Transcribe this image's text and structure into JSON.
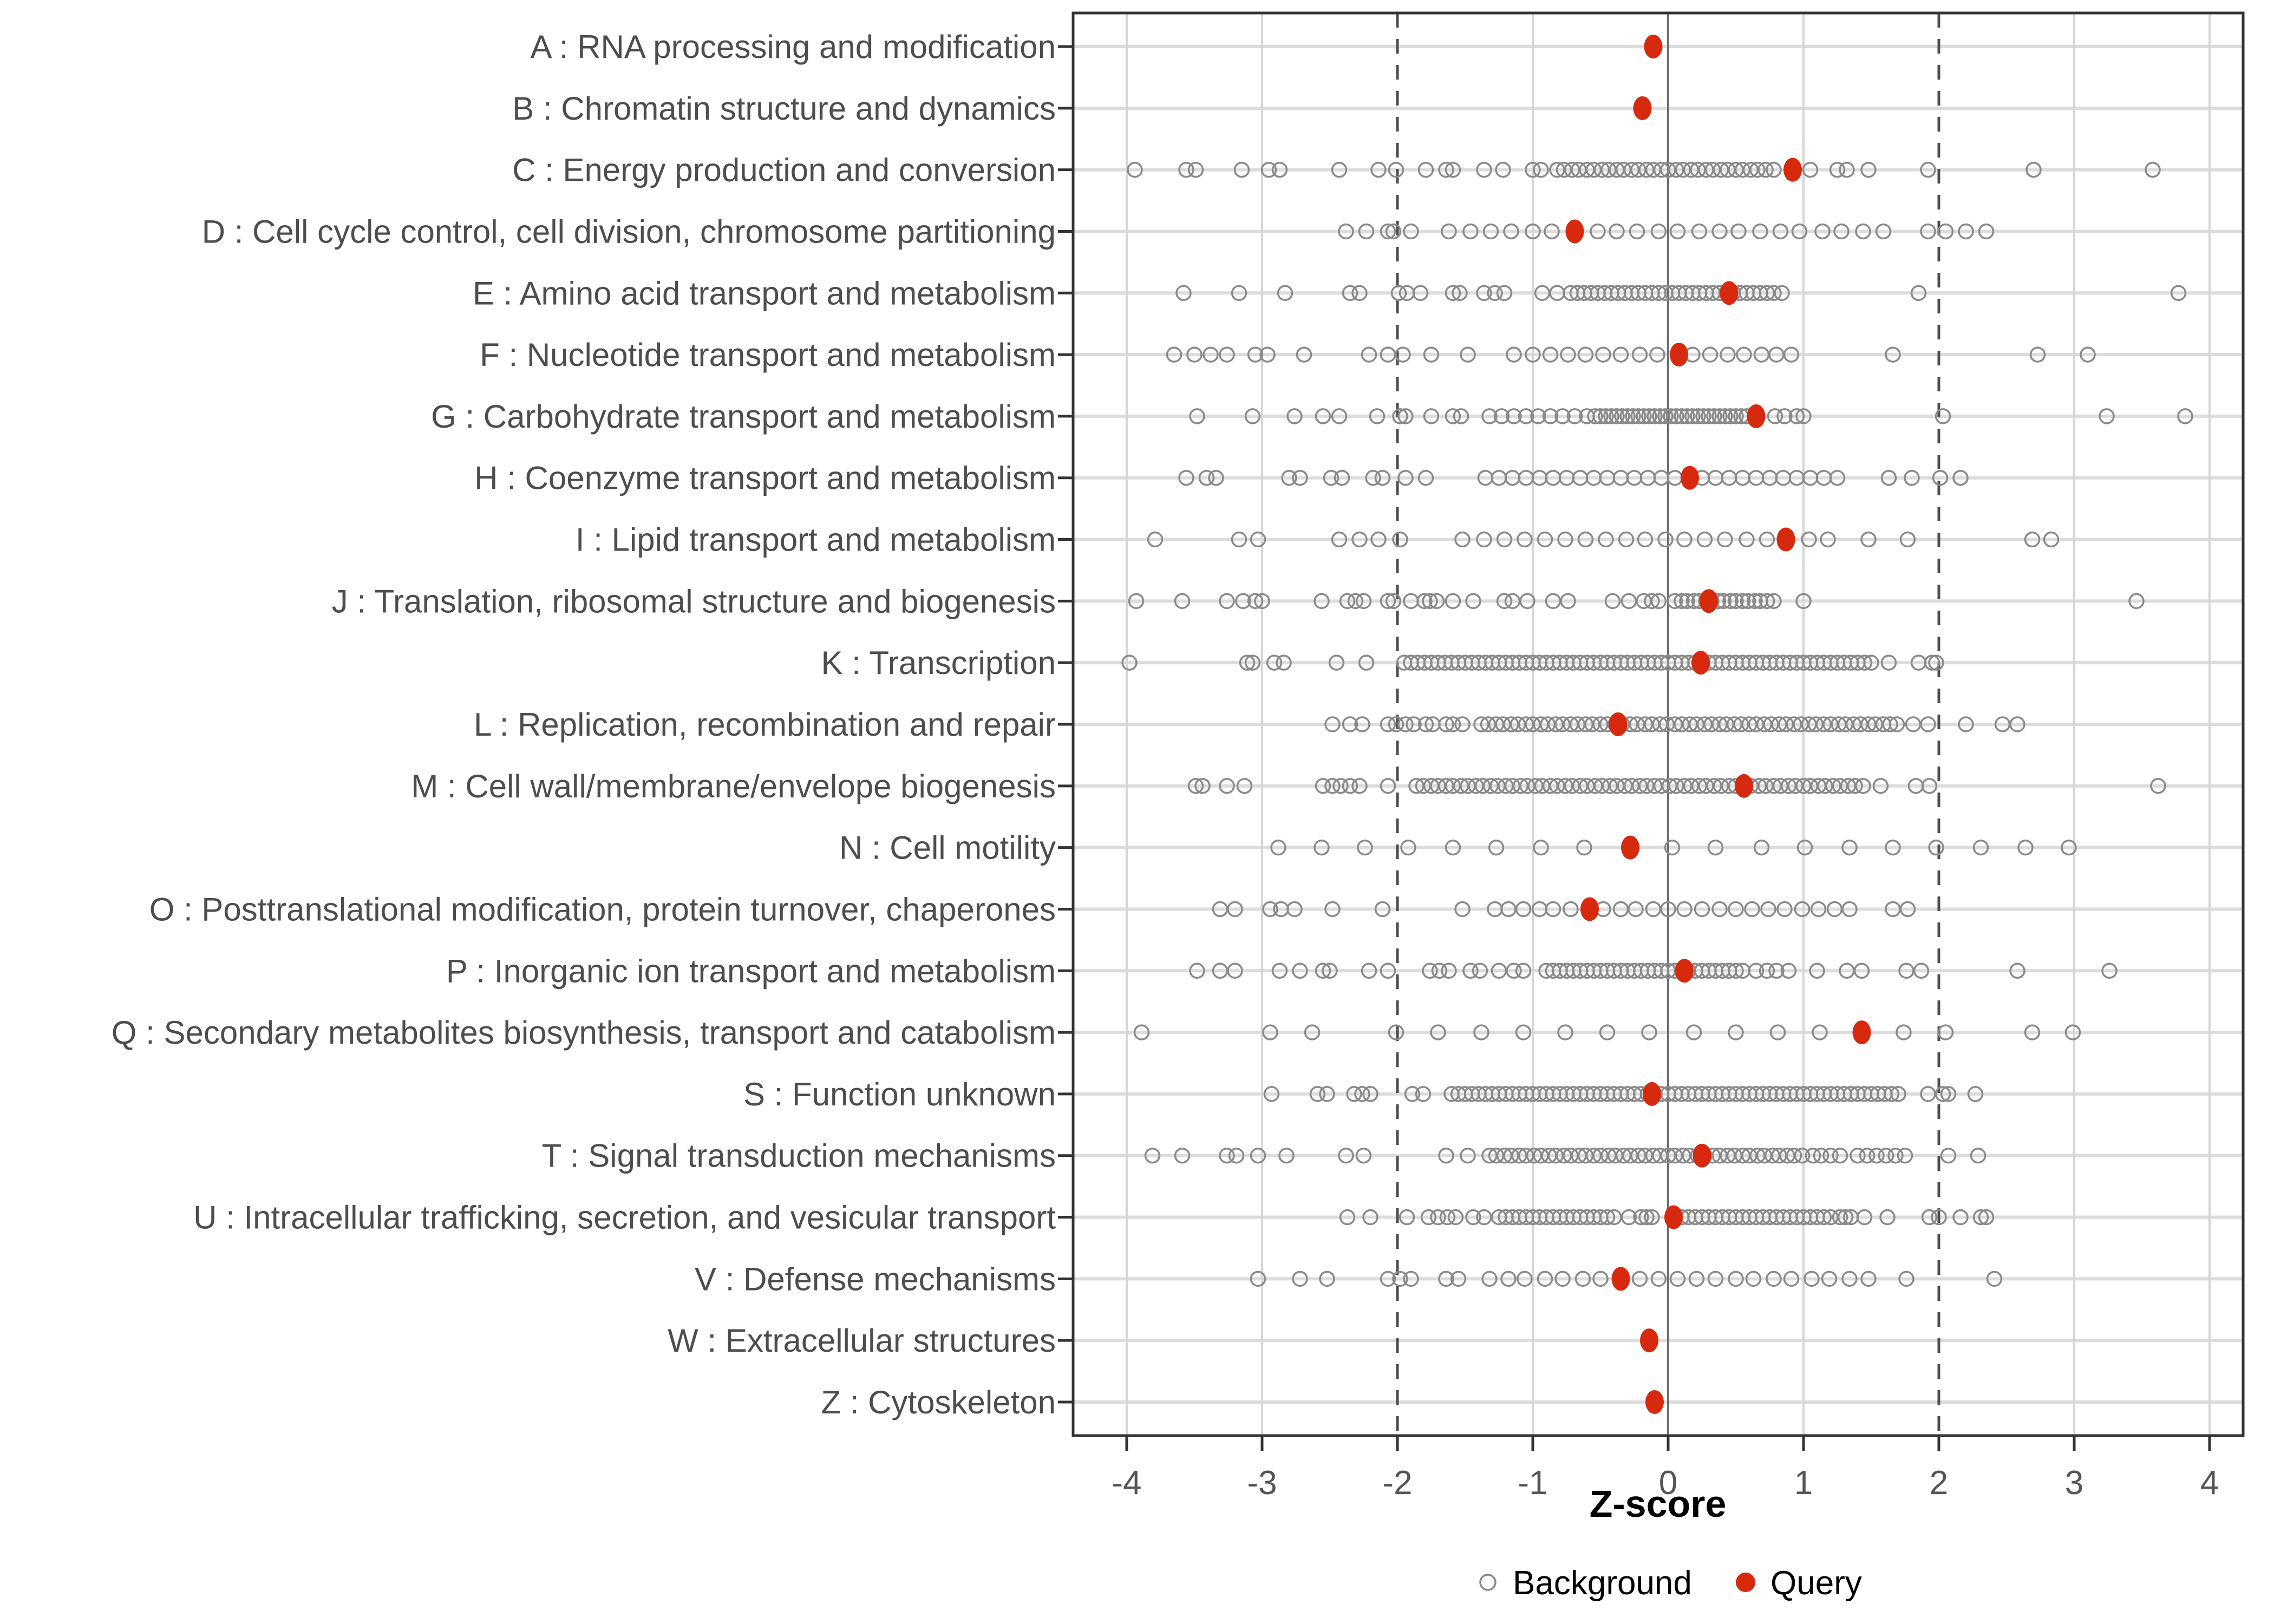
{
  "chart_data": {
    "type": "scatter",
    "title": "",
    "xlabel": "Z-score",
    "ylabel": "",
    "x_ticks": [
      -4,
      -3,
      -2,
      -1,
      0,
      1,
      2,
      3,
      4
    ],
    "xlim": [
      -4.4,
      4.25
    ],
    "grid": true,
    "reference_lines": {
      "solid_x": 0,
      "dashed_x": [
        -2,
        2
      ]
    },
    "legend_position": "bottom",
    "legend": [
      {
        "name": "Background",
        "marker": "open-circle",
        "color": "#8a8a8a"
      },
      {
        "name": "Query",
        "marker": "filled-circle",
        "color": "#d7290d"
      }
    ],
    "categories": [
      {
        "code": "A",
        "label": "A : RNA processing and modification",
        "query": -0.11,
        "background": []
      },
      {
        "code": "B",
        "label": "B : Chromatin structure and dynamics",
        "query": -0.19,
        "background": []
      },
      {
        "code": "C",
        "label": "C : Energy production and conversion",
        "query": 0.92,
        "background": [
          -3.94,
          -3.56,
          -3.49,
          -3.15,
          -2.95,
          -2.87,
          -2.43,
          -2.14,
          -2.01,
          -1.79,
          -1.64,
          -1.59,
          -1.36,
          -1.22,
          -1.0,
          -0.94,
          -0.82,
          -0.77,
          -0.71,
          -0.66,
          -0.6,
          -0.55,
          -0.49,
          -0.44,
          -0.38,
          -0.33,
          -0.27,
          -0.22,
          -0.16,
          -0.11,
          -0.05,
          0.0,
          0.06,
          0.11,
          0.17,
          0.22,
          0.28,
          0.33,
          0.39,
          0.44,
          0.5,
          0.55,
          0.61,
          0.66,
          0.72,
          0.78,
          1.05,
          1.25,
          1.32,
          1.48,
          1.92,
          2.7,
          3.58
        ]
      },
      {
        "code": "D",
        "label": "D : Cell cycle control, cell division, chromosome partitioning",
        "query": -0.69,
        "background": [
          -2.38,
          -2.23,
          -2.07,
          -2.03,
          -1.9,
          -1.62,
          -1.46,
          -1.31,
          -1.16,
          -1.0,
          -0.86,
          -0.52,
          -0.38,
          -0.23,
          -0.07,
          0.07,
          0.23,
          0.38,
          0.52,
          0.68,
          0.83,
          0.97,
          1.14,
          1.28,
          1.44,
          1.59,
          1.92,
          2.05,
          2.2,
          2.35
        ]
      },
      {
        "code": "E",
        "label": "E : Amino acid transport and metabolism",
        "query": 0.45,
        "background": [
          -3.58,
          -3.17,
          -2.83,
          -2.35,
          -2.28,
          -1.99,
          -1.93,
          -1.83,
          -1.59,
          -1.54,
          -1.36,
          -1.28,
          -1.21,
          -0.93,
          -0.82,
          -0.72,
          -0.67,
          -0.62,
          -0.57,
          -0.52,
          -0.47,
          -0.42,
          -0.37,
          -0.32,
          -0.27,
          -0.22,
          -0.17,
          -0.12,
          -0.07,
          -0.02,
          0.03,
          0.08,
          0.13,
          0.18,
          0.23,
          0.28,
          0.33,
          0.38,
          0.43,
          0.48,
          0.53,
          0.58,
          0.63,
          0.68,
          0.73,
          0.78,
          0.84,
          1.85,
          3.77
        ]
      },
      {
        "code": "F",
        "label": "F : Nucleotide transport and metabolism",
        "query": 0.08,
        "background": [
          -3.65,
          -3.5,
          -3.38,
          -3.26,
          -3.05,
          -2.96,
          -2.69,
          -2.21,
          -2.07,
          -1.96,
          -1.75,
          -1.48,
          -1.14,
          -1.0,
          -0.87,
          -0.74,
          -0.61,
          -0.48,
          -0.35,
          -0.21,
          -0.08,
          0.18,
          0.31,
          0.44,
          0.56,
          0.69,
          0.8,
          0.91,
          1.66,
          2.73,
          3.1
        ]
      },
      {
        "code": "G",
        "label": "G : Carbohydrate transport and metabolism",
        "query": 0.65,
        "background": [
          -3.48,
          -3.07,
          -2.76,
          -2.55,
          -2.43,
          -2.15,
          -1.98,
          -1.94,
          -1.75,
          -1.59,
          -1.53,
          -1.32,
          -1.23,
          -1.14,
          -1.05,
          -0.96,
          -0.87,
          -0.78,
          -0.69,
          -0.6,
          -0.54,
          -0.5,
          -0.46,
          -0.42,
          -0.38,
          -0.34,
          -0.3,
          -0.26,
          -0.22,
          -0.18,
          -0.14,
          -0.1,
          -0.06,
          -0.02,
          0.02,
          0.06,
          0.1,
          0.14,
          0.18,
          0.22,
          0.26,
          0.3,
          0.34,
          0.38,
          0.42,
          0.46,
          0.5,
          0.54,
          0.58,
          0.79,
          0.86,
          0.95,
          1.0,
          2.03,
          3.24,
          3.82
        ]
      },
      {
        "code": "H",
        "label": "H : Coenzyme transport and metabolism",
        "query": 0.16,
        "background": [
          -3.56,
          -3.41,
          -3.34,
          -2.8,
          -2.72,
          -2.49,
          -2.41,
          -2.18,
          -2.11,
          -1.94,
          -1.79,
          -1.35,
          -1.25,
          -1.15,
          -1.05,
          -0.95,
          -0.85,
          -0.75,
          -0.65,
          -0.55,
          -0.45,
          -0.35,
          -0.25,
          -0.15,
          -0.05,
          0.05,
          0.15,
          0.25,
          0.35,
          0.45,
          0.55,
          0.65,
          0.75,
          0.85,
          0.95,
          1.05,
          1.15,
          1.25,
          1.63,
          1.8,
          2.01,
          2.16
        ]
      },
      {
        "code": "I",
        "label": "I : Lipid transport and metabolism",
        "query": 0.87,
        "background": [
          -3.79,
          -3.17,
          -3.03,
          -2.43,
          -2.28,
          -2.14,
          -1.98,
          -1.52,
          -1.36,
          -1.21,
          -1.06,
          -0.91,
          -0.76,
          -0.61,
          -0.46,
          -0.31,
          -0.17,
          -0.02,
          0.12,
          0.27,
          0.42,
          0.58,
          0.73,
          1.04,
          1.18,
          1.48,
          1.77,
          2.69,
          2.83
        ]
      },
      {
        "code": "J",
        "label": "J : Translation, ribosomal structure and biogenesis",
        "query": 0.3,
        "background": [
          -3.93,
          -3.59,
          -3.26,
          -3.14,
          -3.05,
          -3.0,
          -2.56,
          -2.37,
          -2.31,
          -2.25,
          -2.07,
          -2.03,
          -1.9,
          -1.8,
          -1.76,
          -1.71,
          -1.59,
          -1.44,
          -1.21,
          -1.15,
          -1.04,
          -0.85,
          -0.74,
          -0.41,
          -0.29,
          -0.18,
          -0.12,
          -0.07,
          0.05,
          0.1,
          0.14,
          0.19,
          0.23,
          0.28,
          0.32,
          0.37,
          0.41,
          0.46,
          0.5,
          0.55,
          0.59,
          0.64,
          0.68,
          0.73,
          0.78,
          1.0,
          3.46
        ]
      },
      {
        "code": "K",
        "label": "K : Transcription",
        "query": 0.24,
        "background": [
          -3.98,
          -3.11,
          -3.07,
          -2.91,
          -2.84,
          -2.45,
          -2.23,
          -1.95,
          -1.9,
          -1.85,
          -1.8,
          -1.75,
          -1.7,
          -1.65,
          -1.6,
          -1.55,
          -1.5,
          -1.45,
          -1.4,
          -1.35,
          -1.3,
          -1.25,
          -1.2,
          -1.15,
          -1.1,
          -1.05,
          -1.0,
          -0.95,
          -0.9,
          -0.85,
          -0.8,
          -0.75,
          -0.7,
          -0.65,
          -0.6,
          -0.55,
          -0.5,
          -0.45,
          -0.4,
          -0.35,
          -0.3,
          -0.25,
          -0.2,
          -0.15,
          -0.1,
          -0.05,
          0.0,
          0.05,
          0.1,
          0.15,
          0.2,
          0.25,
          0.3,
          0.35,
          0.4,
          0.45,
          0.5,
          0.55,
          0.6,
          0.65,
          0.7,
          0.75,
          0.8,
          0.85,
          0.9,
          0.95,
          1.0,
          1.05,
          1.1,
          1.15,
          1.2,
          1.25,
          1.3,
          1.35,
          1.4,
          1.45,
          1.5,
          1.63,
          1.85,
          1.95,
          1.98
        ]
      },
      {
        "code": "L",
        "label": "L : Replication, recombination and repair",
        "query": -0.37,
        "background": [
          -2.48,
          -2.35,
          -2.26,
          -2.07,
          -2.01,
          -1.94,
          -1.88,
          -1.79,
          -1.74,
          -1.64,
          -1.59,
          -1.52,
          -1.38,
          -1.33,
          -1.27,
          -1.22,
          -1.16,
          -1.11,
          -1.05,
          -1.0,
          -0.94,
          -0.89,
          -0.83,
          -0.78,
          -0.72,
          -0.67,
          -0.61,
          -0.56,
          -0.5,
          -0.45,
          -0.39,
          -0.34,
          -0.28,
          -0.23,
          -0.17,
          -0.12,
          -0.06,
          -0.01,
          0.05,
          0.1,
          0.16,
          0.21,
          0.27,
          0.32,
          0.38,
          0.43,
          0.49,
          0.54,
          0.6,
          0.65,
          0.71,
          0.76,
          0.82,
          0.87,
          0.93,
          0.98,
          1.04,
          1.09,
          1.15,
          1.2,
          1.26,
          1.31,
          1.37,
          1.42,
          1.48,
          1.53,
          1.59,
          1.64,
          1.69,
          1.81,
          1.92,
          2.2,
          2.47,
          2.58
        ]
      },
      {
        "code": "M",
        "label": "M : Cell wall/membrane/envelope biogenesis",
        "query": 0.56,
        "background": [
          -3.49,
          -3.44,
          -3.26,
          -3.13,
          -2.55,
          -2.48,
          -2.42,
          -2.35,
          -2.28,
          -2.07,
          -1.86,
          -1.81,
          -1.75,
          -1.7,
          -1.64,
          -1.59,
          -1.53,
          -1.48,
          -1.42,
          -1.37,
          -1.31,
          -1.26,
          -1.2,
          -1.15,
          -1.09,
          -1.04,
          -0.98,
          -0.93,
          -0.87,
          -0.82,
          -0.76,
          -0.71,
          -0.65,
          -0.6,
          -0.54,
          -0.49,
          -0.43,
          -0.38,
          -0.32,
          -0.27,
          -0.21,
          -0.16,
          -0.1,
          -0.05,
          0.01,
          0.06,
          0.12,
          0.17,
          0.23,
          0.28,
          0.34,
          0.39,
          0.45,
          0.5,
          0.56,
          0.61,
          0.67,
          0.72,
          0.78,
          0.83,
          0.89,
          0.94,
          1.0,
          1.05,
          1.11,
          1.16,
          1.22,
          1.27,
          1.33,
          1.38,
          1.44,
          1.57,
          1.83,
          1.93,
          3.62
        ]
      },
      {
        "code": "N",
        "label": "N : Cell motility",
        "query": -0.28,
        "background": [
          -2.88,
          -2.56,
          -2.24,
          -1.92,
          -1.59,
          -1.27,
          -0.94,
          -0.62,
          0.03,
          0.35,
          0.69,
          1.01,
          1.34,
          1.66,
          1.98,
          2.31,
          2.64,
          2.96
        ]
      },
      {
        "code": "O",
        "label": "O : Posttranslational modification, protein turnover, chaperones",
        "query": -0.58,
        "background": [
          -3.31,
          -3.2,
          -2.94,
          -2.86,
          -2.76,
          -2.48,
          -2.11,
          -1.52,
          -1.28,
          -1.18,
          -1.07,
          -0.95,
          -0.85,
          -0.72,
          -0.48,
          -0.35,
          -0.24,
          -0.11,
          0.0,
          0.12,
          0.25,
          0.38,
          0.5,
          0.62,
          0.74,
          0.86,
          0.99,
          1.11,
          1.23,
          1.34,
          1.66,
          1.77
        ]
      },
      {
        "code": "P",
        "label": "P : Inorganic ion transport and metabolism",
        "query": 0.12,
        "background": [
          -3.48,
          -3.31,
          -3.2,
          -2.87,
          -2.72,
          -2.55,
          -2.5,
          -2.21,
          -2.07,
          -1.76,
          -1.69,
          -1.62,
          -1.46,
          -1.39,
          -1.25,
          -1.14,
          -1.07,
          -0.9,
          -0.85,
          -0.8,
          -0.75,
          -0.7,
          -0.65,
          -0.6,
          -0.55,
          -0.5,
          -0.45,
          -0.4,
          -0.35,
          -0.3,
          -0.25,
          -0.2,
          -0.15,
          -0.1,
          -0.05,
          0.0,
          0.05,
          0.1,
          0.15,
          0.2,
          0.25,
          0.3,
          0.35,
          0.4,
          0.45,
          0.5,
          0.55,
          0.65,
          0.73,
          0.8,
          0.89,
          1.1,
          1.32,
          1.43,
          1.76,
          1.87,
          2.58,
          3.26
        ]
      },
      {
        "code": "Q",
        "label": "Q : Secondary metabolites biosynthesis, transport and catabolism",
        "query": 1.43,
        "background": [
          -3.89,
          -2.94,
          -2.63,
          -2.01,
          -1.7,
          -1.38,
          -1.07,
          -0.76,
          -0.45,
          -0.14,
          0.19,
          0.5,
          0.81,
          1.12,
          1.74,
          2.05,
          2.69,
          2.99
        ]
      },
      {
        "code": "S",
        "label": "S : Function unknown",
        "query": -0.12,
        "background": [
          -2.93,
          -2.59,
          -2.52,
          -2.32,
          -2.26,
          -2.2,
          -1.89,
          -1.81,
          -1.6,
          -1.55,
          -1.5,
          -1.45,
          -1.4,
          -1.35,
          -1.3,
          -1.25,
          -1.2,
          -1.15,
          -1.1,
          -1.05,
          -1.0,
          -0.95,
          -0.9,
          -0.85,
          -0.8,
          -0.75,
          -0.7,
          -0.65,
          -0.6,
          -0.55,
          -0.5,
          -0.45,
          -0.4,
          -0.35,
          -0.3,
          -0.25,
          -0.2,
          -0.15,
          -0.1,
          -0.05,
          0.0,
          0.05,
          0.1,
          0.15,
          0.2,
          0.25,
          0.3,
          0.35,
          0.4,
          0.45,
          0.5,
          0.55,
          0.6,
          0.65,
          0.7,
          0.75,
          0.8,
          0.85,
          0.9,
          0.95,
          1.0,
          1.05,
          1.1,
          1.15,
          1.2,
          1.25,
          1.3,
          1.35,
          1.4,
          1.45,
          1.5,
          1.55,
          1.6,
          1.65,
          1.7,
          1.92,
          2.03,
          2.07,
          2.27
        ]
      },
      {
        "code": "T",
        "label": "T : Signal transduction mechanisms",
        "query": 0.25,
        "background": [
          -3.81,
          -3.59,
          -3.26,
          -3.19,
          -3.03,
          -2.82,
          -2.38,
          -2.25,
          -1.64,
          -1.48,
          -1.32,
          -1.27,
          -1.21,
          -1.16,
          -1.1,
          -1.05,
          -0.99,
          -0.94,
          -0.88,
          -0.83,
          -0.77,
          -0.72,
          -0.66,
          -0.61,
          -0.55,
          -0.5,
          -0.44,
          -0.39,
          -0.33,
          -0.28,
          -0.22,
          -0.17,
          -0.11,
          -0.06,
          0.0,
          0.05,
          0.11,
          0.16,
          0.22,
          0.27,
          0.33,
          0.38,
          0.44,
          0.49,
          0.55,
          0.6,
          0.66,
          0.71,
          0.77,
          0.82,
          0.88,
          0.93,
          0.99,
          1.07,
          1.13,
          1.2,
          1.27,
          1.4,
          1.47,
          1.54,
          1.61,
          1.68,
          1.75,
          2.07,
          2.29
        ]
      },
      {
        "code": "U",
        "label": "U : Intracellular trafficking, secretion, and vesicular transport",
        "query": 0.04,
        "background": [
          -2.37,
          -2.2,
          -1.93,
          -1.77,
          -1.7,
          -1.63,
          -1.57,
          -1.44,
          -1.36,
          -1.25,
          -1.2,
          -1.15,
          -1.1,
          -1.05,
          -1.0,
          -0.95,
          -0.9,
          -0.85,
          -0.8,
          -0.75,
          -0.7,
          -0.65,
          -0.6,
          -0.55,
          -0.5,
          -0.45,
          -0.4,
          -0.29,
          -0.2,
          -0.16,
          -0.12,
          0.1,
          0.15,
          0.2,
          0.25,
          0.3,
          0.35,
          0.4,
          0.45,
          0.5,
          0.55,
          0.6,
          0.65,
          0.7,
          0.75,
          0.8,
          0.85,
          0.9,
          0.95,
          1.0,
          1.05,
          1.1,
          1.15,
          1.2,
          1.27,
          1.31,
          1.35,
          1.45,
          1.62,
          1.93,
          2.0,
          2.16,
          2.31,
          2.35
        ]
      },
      {
        "code": "V",
        "label": "V : Defense mechanisms",
        "query": -0.35,
        "background": [
          -3.03,
          -2.72,
          -2.52,
          -2.07,
          -1.98,
          -1.9,
          -1.64,
          -1.55,
          -1.32,
          -1.18,
          -1.06,
          -0.91,
          -0.78,
          -0.63,
          -0.5,
          -0.21,
          -0.07,
          0.07,
          0.21,
          0.35,
          0.5,
          0.63,
          0.78,
          0.91,
          1.06,
          1.19,
          1.34,
          1.48,
          1.76,
          2.41
        ]
      },
      {
        "code": "W",
        "label": "W : Extracellular structures",
        "query": -0.14,
        "background": []
      },
      {
        "code": "Z",
        "label": "Z : Cytoskeleton",
        "query": -0.1,
        "background": []
      }
    ]
  },
  "colors": {
    "query": "#d7290d",
    "background_stroke": "#8a8a8a",
    "grid": "#d6d6d6",
    "row_grid": "#dcdcdc",
    "zero_line": "#6e6e6e",
    "dashed_line": "#4d4d4d",
    "axis_text": "#555555",
    "category_text": "#4d4d4d",
    "panel_border": "#333333",
    "tick_mark": "#333333"
  }
}
